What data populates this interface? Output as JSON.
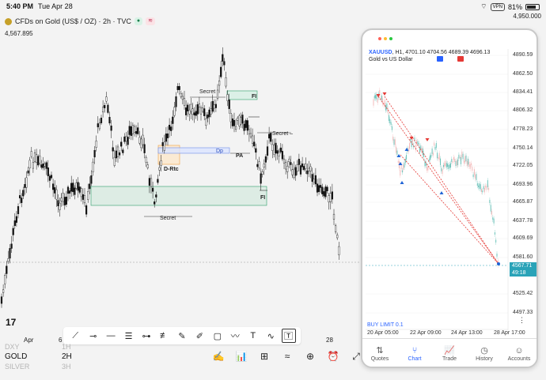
{
  "status": {
    "time": "5:40 PM",
    "date": "Tue Apr 28",
    "vpn": "VPN",
    "battery_percent": "81%",
    "battery_level": 0.81
  },
  "main": {
    "title": "CFDs on Gold (US$ / OZ) · 2h · TVC",
    "last_price": "4,567.895",
    "top_price": "4,950.000",
    "pill_dot": "●",
    "pill_wave": "≋",
    "x_labels": [
      "Apr",
      "6",
      "28"
    ],
    "annotations": {
      "secret_top": "Secret",
      "secret_right": "Secret –",
      "secret_bottom": "Secret",
      "fi_top": "FI",
      "fi_bottom": "FI",
      "dp": "Dp",
      "pa": "PA",
      "drtc": "D-Rtc"
    },
    "tv_logo": "17"
  },
  "watchlist": [
    {
      "symbol": "DXY",
      "interval": "1H",
      "dim": true
    },
    {
      "symbol": "GOLD",
      "interval": "2H",
      "dim": false
    },
    {
      "symbol": "SILVER",
      "interval": "3H",
      "dim": true
    }
  ],
  "phone": {
    "symbol": "XAUUSD",
    "ohlc": ", H1, 4701.10 4704.56 4689.39 4696.13",
    "subtitle": "Gold vs US Dollar",
    "y_labels": [
      "4890.59",
      "4862.50",
      "4834.41",
      "4806.32",
      "4778.23",
      "4750.14",
      "4722.05",
      "4693.96",
      "4665.87",
      "4637.78",
      "4609.69",
      "4581.60",
      "4525.42",
      "4497.33"
    ],
    "price_tag": [
      "4567.71",
      "49:18"
    ],
    "buy_limit": "BUY LIMIT 0.1",
    "x_labels": [
      "20 Apr 05:00",
      "22 Apr 09:00",
      "24 Apr 13:00",
      "28 Apr 17:00"
    ],
    "more": "⋮",
    "nav": [
      {
        "label": "Quotes",
        "icon": "⇅",
        "active": false
      },
      {
        "label": "Chart",
        "icon": "⑂",
        "active": true
      },
      {
        "label": "Trade",
        "icon": "📈",
        "active": false
      },
      {
        "label": "History",
        "icon": "◷",
        "active": false
      },
      {
        "label": "Accounts",
        "icon": "☺",
        "active": false
      }
    ]
  },
  "colors": {
    "bull": "#ffffff",
    "bear": "#111111",
    "accent": "#2962ff",
    "phone_up": "#26a69a",
    "phone_down": "#ef9a9a",
    "signal_red": "#e53935",
    "signal_blue": "#1e63d6"
  }
}
